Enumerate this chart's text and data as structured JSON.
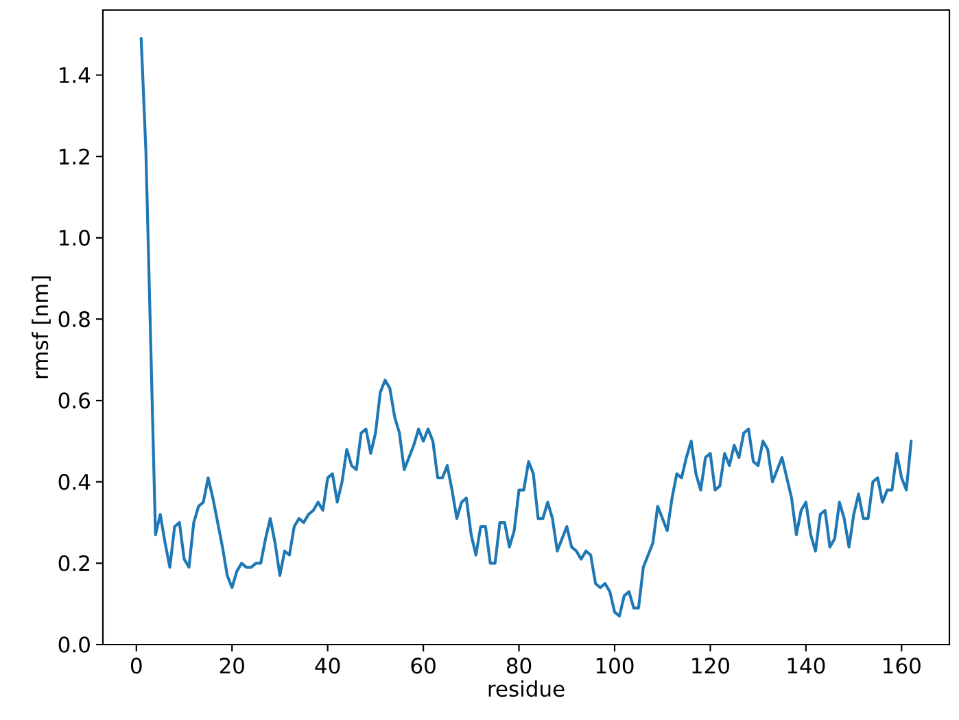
{
  "chart_data": {
    "type": "line",
    "xlabel": "residue",
    "ylabel": "rmsf [nm]",
    "color": "#1f77b4",
    "xlim": [
      -7,
      170
    ],
    "ylim": [
      0,
      1.56
    ],
    "xticks": [
      0,
      20,
      40,
      60,
      80,
      100,
      120,
      140,
      160
    ],
    "yticks": [
      {
        "value": 0,
        "label": "0.0"
      },
      0.2,
      0.4,
      0.6,
      0.8,
      {
        "value": 1,
        "label": "1.0"
      },
      1.2,
      1.4
    ],
    "x": [
      1,
      2,
      3,
      4,
      5,
      6,
      7,
      8,
      9,
      10,
      11,
      12,
      13,
      14,
      15,
      16,
      17,
      18,
      19,
      20,
      21,
      22,
      23,
      24,
      25,
      26,
      27,
      28,
      29,
      30,
      31,
      32,
      33,
      34,
      35,
      36,
      37,
      38,
      39,
      40,
      41,
      42,
      43,
      44,
      45,
      46,
      47,
      48,
      49,
      50,
      51,
      52,
      53,
      54,
      55,
      56,
      57,
      58,
      59,
      60,
      61,
      62,
      63,
      64,
      65,
      66,
      67,
      68,
      69,
      70,
      71,
      72,
      73,
      74,
      75,
      76,
      77,
      78,
      79,
      80,
      81,
      82,
      83,
      84,
      85,
      86,
      87,
      88,
      89,
      90,
      91,
      92,
      93,
      94,
      95,
      96,
      97,
      98,
      99,
      100,
      101,
      102,
      103,
      104,
      105,
      106,
      107,
      108,
      109,
      110,
      111,
      112,
      113,
      114,
      115,
      116,
      117,
      118,
      119,
      120,
      121,
      122,
      123,
      124,
      125,
      126,
      127,
      128,
      129,
      130,
      131,
      132,
      133,
      134,
      135,
      136,
      137,
      138,
      139,
      140,
      141,
      142,
      143,
      144,
      145,
      146,
      147,
      148,
      149,
      150,
      151,
      152,
      153,
      154,
      155,
      156,
      157,
      158,
      159,
      160,
      161,
      162
    ],
    "values": [
      1.49,
      1.21,
      0.74,
      0.27,
      0.32,
      0.25,
      0.19,
      0.29,
      0.3,
      0.21,
      0.19,
      0.3,
      0.34,
      0.35,
      0.41,
      0.36,
      0.3,
      0.24,
      0.17,
      0.14,
      0.18,
      0.2,
      0.19,
      0.19,
      0.2,
      0.2,
      0.26,
      0.31,
      0.25,
      0.17,
      0.23,
      0.22,
      0.29,
      0.31,
      0.3,
      0.32,
      0.33,
      0.35,
      0.33,
      0.41,
      0.42,
      0.35,
      0.4,
      0.48,
      0.44,
      0.43,
      0.52,
      0.53,
      0.47,
      0.52,
      0.62,
      0.65,
      0.63,
      0.56,
      0.52,
      0.43,
      0.46,
      0.49,
      0.53,
      0.5,
      0.53,
      0.5,
      0.41,
      0.41,
      0.44,
      0.38,
      0.31,
      0.35,
      0.36,
      0.27,
      0.22,
      0.29,
      0.29,
      0.2,
      0.2,
      0.3,
      0.3,
      0.24,
      0.28,
      0.38,
      0.38,
      0.45,
      0.42,
      0.31,
      0.31,
      0.35,
      0.31,
      0.23,
      0.26,
      0.29,
      0.24,
      0.23,
      0.21,
      0.23,
      0.22,
      0.15,
      0.14,
      0.15,
      0.13,
      0.08,
      0.07,
      0.12,
      0.13,
      0.09,
      0.09,
      0.19,
      0.22,
      0.25,
      0.34,
      0.31,
      0.28,
      0.36,
      0.42,
      0.41,
      0.46,
      0.5,
      0.42,
      0.38,
      0.46,
      0.47,
      0.38,
      0.39,
      0.47,
      0.44,
      0.49,
      0.46,
      0.52,
      0.53,
      0.45,
      0.44,
      0.5,
      0.48,
      0.4,
      0.43,
      0.46,
      0.41,
      0.36,
      0.27,
      0.33,
      0.35,
      0.27,
      0.23,
      0.32,
      0.33,
      0.24,
      0.26,
      0.35,
      0.31,
      0.24,
      0.32,
      0.37,
      0.31,
      0.31,
      0.4,
      0.41,
      0.35,
      0.38,
      0.38,
      0.47,
      0.41,
      0.38,
      0.5
    ]
  }
}
